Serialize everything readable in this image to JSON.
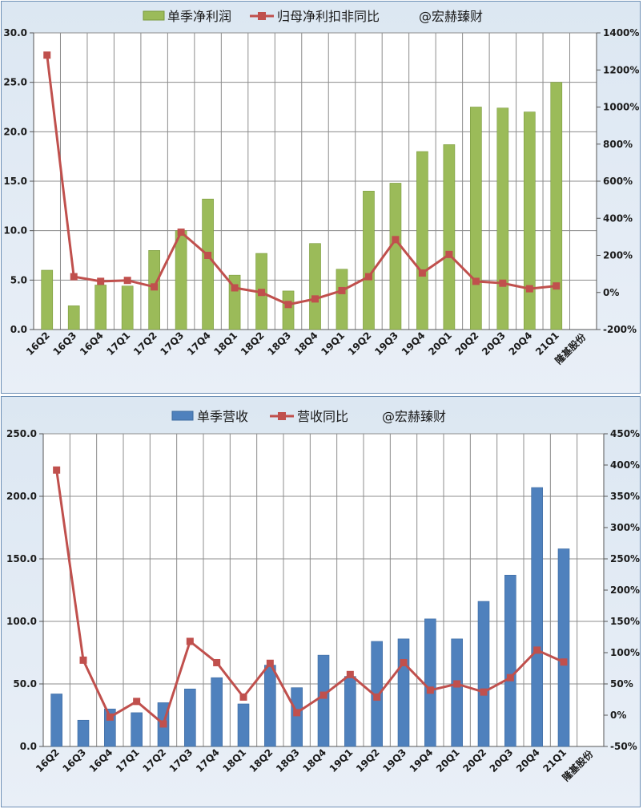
{
  "charts": [
    {
      "legend": {
        "bar_label": "单季净利润",
        "line_label": "归母净利扣非同比",
        "watermark": "@宏赫臻财"
      },
      "company": "隆基股份",
      "chart_data": {
        "type": "bar",
        "categories": [
          "16Q2",
          "16Q3",
          "16Q4",
          "17Q1",
          "17Q2",
          "17Q3",
          "17Q4",
          "18Q1",
          "18Q2",
          "18Q3",
          "18Q4",
          "19Q1",
          "19Q2",
          "19Q3",
          "19Q4",
          "20Q1",
          "20Q2",
          "20Q3",
          "20Q4",
          "21Q1"
        ],
        "series": [
          {
            "name": "单季净利润",
            "type": "bar",
            "axis": "left",
            "values": [
              6.0,
              2.4,
              4.5,
              4.4,
              8.0,
              10.0,
              13.2,
              5.5,
              7.7,
              3.9,
              8.7,
              6.1,
              14.0,
              14.8,
              18.0,
              18.7,
              22.5,
              22.4,
              22.0,
              25.0
            ]
          },
          {
            "name": "归母净利扣非同比",
            "type": "line",
            "axis": "right",
            "values": [
              1280,
              85,
              60,
              65,
              30,
              325,
              200,
              25,
              0,
              -65,
              -35,
              10,
              85,
              285,
              105,
              205,
              60,
              50,
              20,
              35
            ]
          }
        ],
        "yleft": {
          "min": 0,
          "max": 30,
          "step": 5,
          "ticks": [
            "0.0",
            "5.0",
            "10.0",
            "15.0",
            "20.0",
            "25.0",
            "30.0"
          ]
        },
        "yright": {
          "min": -200,
          "max": 1400,
          "step": 200,
          "ticks": [
            "-200%",
            "0%",
            "200%",
            "400%",
            "600%",
            "800%",
            "1000%",
            "1200%",
            "1400%"
          ]
        },
        "colors": {
          "bar": "#9bbb59",
          "bar_edge": "#7a9a3c",
          "line": "#c0504d"
        },
        "grid": true,
        "legend_position": "top"
      }
    },
    {
      "legend": {
        "bar_label": "单季营收",
        "line_label": "营收同比",
        "watermark": "@宏赫臻财"
      },
      "company": "隆基股份",
      "chart_data": {
        "type": "bar",
        "categories": [
          "16Q2",
          "16Q3",
          "16Q4",
          "17Q1",
          "17Q2",
          "17Q3",
          "17Q4",
          "18Q1",
          "18Q2",
          "18Q3",
          "18Q4",
          "19Q1",
          "19Q2",
          "19Q3",
          "19Q4",
          "20Q1",
          "20Q2",
          "20Q3",
          "20Q4",
          "21Q1"
        ],
        "series": [
          {
            "name": "单季营收",
            "type": "bar",
            "axis": "left",
            "values": [
              42,
              21,
              30,
              27,
              35,
              46,
              55,
              34,
              65,
              47,
              73,
              56,
              84,
              86,
              102,
              86,
              116,
              137,
              207,
              158
            ]
          },
          {
            "name": "营收同比",
            "type": "line",
            "axis": "right",
            "values": [
              392,
              88,
              -3,
              22,
              -14,
              118,
              84,
              29,
              83,
              4,
              32,
              65,
              29,
              84,
              40,
              50,
              37,
              60,
              104,
              85
            ]
          }
        ],
        "yleft": {
          "min": 0,
          "max": 250,
          "step": 50,
          "ticks": [
            "0.0",
            "50.0",
            "100.0",
            "150.0",
            "200.0",
            "250.0"
          ]
        },
        "yright": {
          "min": -50,
          "max": 450,
          "step": 50,
          "ticks": [
            "-50%",
            "0%",
            "50%",
            "100%",
            "150%",
            "200%",
            "250%",
            "300%",
            "350%",
            "400%",
            "450%"
          ]
        },
        "colors": {
          "bar": "#4f81bd",
          "bar_edge": "#3c6aa0",
          "line": "#c0504d"
        },
        "grid": true,
        "legend_position": "top"
      }
    }
  ]
}
